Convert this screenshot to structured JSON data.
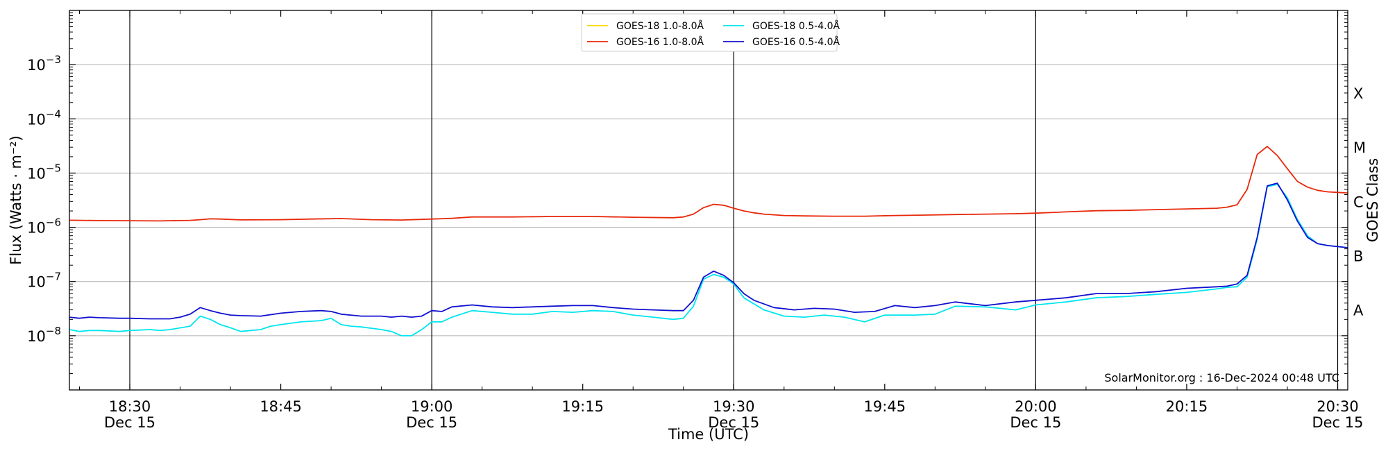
{
  "chart_data": {
    "type": "line",
    "title": "",
    "xlabel": "Time (UTC)",
    "ylabel": "Flux (Watts · m⁻²)",
    "y2label": "GOES Class",
    "yscale": "log",
    "ylim": [
      1e-09,
      0.01
    ],
    "xlim": [
      "18:24",
      "20:31"
    ],
    "grid": "horizontal at decades",
    "legend_position": "top-center",
    "credit": "SolarMonitor.org : 16-Dec-2024 00:48 UTC",
    "x_ticks": [
      {
        "time": "18:30",
        "label": "18:30",
        "sublabel": "Dec 15"
      },
      {
        "time": "18:45",
        "label": "18:45",
        "sublabel": ""
      },
      {
        "time": "19:00",
        "label": "19:00",
        "sublabel": "Dec 15"
      },
      {
        "time": "19:15",
        "label": "19:15",
        "sublabel": ""
      },
      {
        "time": "19:30",
        "label": "19:30",
        "sublabel": "Dec 15"
      },
      {
        "time": "19:45",
        "label": "19:45",
        "sublabel": ""
      },
      {
        "time": "20:00",
        "label": "20:00",
        "sublabel": "Dec 15"
      },
      {
        "time": "20:15",
        "label": "20:15",
        "sublabel": ""
      },
      {
        "time": "20:30",
        "label": "20:30",
        "sublabel": "Dec 15"
      }
    ],
    "vlines": [
      "18:30",
      "19:00",
      "19:30",
      "20:00",
      "20:30"
    ],
    "y_ticks": [
      {
        "value": 1e-08,
        "base": "10",
        "exp": "−8"
      },
      {
        "value": 1e-07,
        "base": "10",
        "exp": "−7"
      },
      {
        "value": 1e-06,
        "base": "10",
        "exp": "−6"
      },
      {
        "value": 1e-05,
        "base": "10",
        "exp": "−5"
      },
      {
        "value": 0.0001,
        "base": "10",
        "exp": "−4"
      },
      {
        "value": 0.001,
        "base": "10",
        "exp": "−3"
      }
    ],
    "goes_classes": [
      {
        "label": "A",
        "value": 3e-08
      },
      {
        "label": "B",
        "value": 3e-07
      },
      {
        "label": "C",
        "value": 3e-06
      },
      {
        "label": "M",
        "value": 3e-05
      },
      {
        "label": "X",
        "value": 0.0003
      }
    ],
    "series": [
      {
        "name": "GOES-18 1.0-8.0Å",
        "color": "#ffd700",
        "x": [],
        "y": []
      },
      {
        "name": "GOES-16 1.0-8.0Å",
        "color": "#e8280a",
        "x": [
          "18:24",
          "18:27",
          "18:30",
          "18:33",
          "18:36",
          "18:37",
          "18:38",
          "18:39",
          "18:41",
          "18:45",
          "18:48",
          "18:51",
          "18:54",
          "18:57",
          "19:00",
          "19:02",
          "19:04",
          "19:08",
          "19:12",
          "19:16",
          "19:20",
          "19:24",
          "19:25",
          "19:26",
          "19:27",
          "19:28",
          "19:29",
          "19:30",
          "19:31",
          "19:32",
          "19:33",
          "19:35",
          "19:37",
          "19:40",
          "19:43",
          "19:46",
          "19:49",
          "19:52",
          "19:55",
          "19:58",
          "20:00",
          "20:03",
          "20:06",
          "20:09",
          "20:12",
          "20:15",
          "20:18",
          "20:19",
          "20:20",
          "20:21",
          "20:22",
          "20:23",
          "20:24",
          "20:25",
          "20:26",
          "20:27",
          "20:28",
          "20:29",
          "20:30",
          "20:31"
        ],
        "y": [
          1.35e-06,
          1.33e-06,
          1.32e-06,
          1.31e-06,
          1.34e-06,
          1.38e-06,
          1.43e-06,
          1.42e-06,
          1.37e-06,
          1.38e-06,
          1.42e-06,
          1.45e-06,
          1.38e-06,
          1.36e-06,
          1.42e-06,
          1.46e-06,
          1.55e-06,
          1.55e-06,
          1.58e-06,
          1.58e-06,
          1.53e-06,
          1.5e-06,
          1.55e-06,
          1.75e-06,
          2.3e-06,
          2.65e-06,
          2.55e-06,
          2.25e-06,
          2e-06,
          1.85e-06,
          1.75e-06,
          1.65e-06,
          1.62e-06,
          1.6e-06,
          1.6e-06,
          1.65e-06,
          1.68e-06,
          1.72e-06,
          1.75e-06,
          1.78e-06,
          1.82e-06,
          1.92e-06,
          2.02e-06,
          2.05e-06,
          2.12e-06,
          2.18e-06,
          2.25e-06,
          2.35e-06,
          2.6e-06,
          5e-06,
          2.2e-05,
          3.1e-05,
          2.1e-05,
          1.2e-05,
          7e-06,
          5.5e-06,
          4.8e-06,
          4.5e-06,
          4.4e-06,
          4.3e-06
        ]
      },
      {
        "name": "GOES-18 0.5-4.0Å",
        "color": "#00e5ee",
        "x": [
          "18:24",
          "18:25",
          "18:26",
          "18:27",
          "18:29",
          "18:30",
          "18:32",
          "18:33",
          "18:34",
          "18:36",
          "18:37",
          "18:38",
          "18:39",
          "18:40",
          "18:41",
          "18:42",
          "18:43",
          "18:44",
          "18:45",
          "18:47",
          "18:49",
          "18:50",
          "18:51",
          "18:52",
          "18:53",
          "18:55",
          "18:56",
          "18:57",
          "18:58",
          "18:59",
          "19:00",
          "19:01",
          "19:02",
          "19:04",
          "19:06",
          "19:08",
          "19:10",
          "19:12",
          "19:14",
          "19:16",
          "19:18",
          "19:20",
          "19:22",
          "19:24",
          "19:25",
          "19:26",
          "19:27",
          "19:28",
          "19:29",
          "19:30",
          "19:31",
          "19:33",
          "19:35",
          "19:37",
          "19:39",
          "19:41",
          "19:43",
          "19:45",
          "19:48",
          "19:50",
          "19:52",
          "19:55",
          "19:58",
          "20:00",
          "20:03",
          "20:06",
          "20:09",
          "20:12",
          "20:15",
          "20:18",
          "20:19",
          "20:20",
          "20:21",
          "20:22",
          "20:23",
          "20:24",
          "20:25",
          "20:26",
          "20:27",
          "20:28",
          "20:29",
          "20:30",
          "20:31"
        ],
        "y": [
          1.3e-08,
          1.2e-08,
          1.25e-08,
          1.25e-08,
          1.2e-08,
          1.25e-08,
          1.3e-08,
          1.25e-08,
          1.3e-08,
          1.5e-08,
          2.3e-08,
          2e-08,
          1.6e-08,
          1.4e-08,
          1.2e-08,
          1.25e-08,
          1.3e-08,
          1.5e-08,
          1.6e-08,
          1.8e-08,
          1.9e-08,
          2.1e-08,
          1.6e-08,
          1.5e-08,
          1.45e-08,
          1.3e-08,
          1.2e-08,
          1e-08,
          1e-08,
          1.3e-08,
          1.8e-08,
          1.8e-08,
          2.2e-08,
          2.9e-08,
          2.7e-08,
          2.5e-08,
          2.5e-08,
          2.8e-08,
          2.7e-08,
          2.9e-08,
          2.8e-08,
          2.4e-08,
          2.2e-08,
          2e-08,
          2.1e-08,
          3.5e-08,
          1.1e-07,
          1.35e-07,
          1.2e-07,
          9e-08,
          5e-08,
          3e-08,
          2.3e-08,
          2.2e-08,
          2.4e-08,
          2.2e-08,
          1.8e-08,
          2.4e-08,
          2.4e-08,
          2.5e-08,
          3.5e-08,
          3.4e-08,
          3e-08,
          3.7e-08,
          4.2e-08,
          5e-08,
          5.3e-08,
          5.8e-08,
          6.3e-08,
          7.3e-08,
          7.8e-08,
          8e-08,
          1.2e-07,
          6e-07,
          5.6e-06,
          6.2e-06,
          3.5e-06,
          1.4e-06,
          7e-07,
          5e-07,
          4.6e-07,
          4.4e-07,
          4.2e-07
        ]
      },
      {
        "name": "GOES-16 0.5-4.0Å",
        "color": "#1010d0",
        "x": [
          "18:24",
          "18:25",
          "18:26",
          "18:27",
          "18:29",
          "18:30",
          "18:32",
          "18:34",
          "18:35",
          "18:36",
          "18:37",
          "18:38",
          "18:39",
          "18:40",
          "18:41",
          "18:43",
          "18:45",
          "18:47",
          "18:49",
          "18:50",
          "18:51",
          "18:53",
          "18:55",
          "18:56",
          "18:57",
          "18:58",
          "18:59",
          "19:00",
          "19:01",
          "19:02",
          "19:04",
          "19:06",
          "19:08",
          "19:10",
          "19:12",
          "19:14",
          "19:16",
          "19:18",
          "19:20",
          "19:22",
          "19:24",
          "19:25",
          "19:26",
          "19:27",
          "19:28",
          "19:29",
          "19:30",
          "19:31",
          "19:32",
          "19:34",
          "19:36",
          "19:38",
          "19:40",
          "19:42",
          "19:44",
          "19:46",
          "19:48",
          "19:50",
          "19:52",
          "19:55",
          "19:58",
          "20:00",
          "20:03",
          "20:06",
          "20:09",
          "20:12",
          "20:15",
          "20:18",
          "20:19",
          "20:20",
          "20:21",
          "20:22",
          "20:23",
          "20:24",
          "20:25",
          "20:26",
          "20:27",
          "20:28",
          "20:29",
          "20:30",
          "20:31"
        ],
        "y": [
          2.2e-08,
          2.1e-08,
          2.2e-08,
          2.15e-08,
          2.1e-08,
          2.1e-08,
          2.05e-08,
          2.05e-08,
          2.2e-08,
          2.5e-08,
          3.3e-08,
          2.9e-08,
          2.6e-08,
          2.4e-08,
          2.35e-08,
          2.3e-08,
          2.6e-08,
          2.8e-08,
          2.9e-08,
          2.8e-08,
          2.5e-08,
          2.3e-08,
          2.3e-08,
          2.2e-08,
          2.3e-08,
          2.2e-08,
          2.3e-08,
          2.9e-08,
          2.8e-08,
          3.4e-08,
          3.7e-08,
          3.4e-08,
          3.3e-08,
          3.4e-08,
          3.5e-08,
          3.6e-08,
          3.6e-08,
          3.3e-08,
          3.1e-08,
          3e-08,
          2.9e-08,
          2.9e-08,
          4.5e-08,
          1.2e-07,
          1.55e-07,
          1.3e-07,
          9.5e-08,
          6e-08,
          4.5e-08,
          3.3e-08,
          3e-08,
          3.2e-08,
          3.1e-08,
          2.7e-08,
          2.8e-08,
          3.6e-08,
          3.3e-08,
          3.6e-08,
          4.2e-08,
          3.6e-08,
          4.2e-08,
          4.5e-08,
          5e-08,
          6e-08,
          6e-08,
          6.5e-08,
          7.5e-08,
          8e-08,
          8.2e-08,
          9e-08,
          1.3e-07,
          6.5e-07,
          5.8e-06,
          6.5e-06,
          3.2e-06,
          1.3e-06,
          6.5e-07,
          5e-07,
          4.6e-07,
          4.4e-07,
          4.2e-07
        ]
      }
    ]
  }
}
